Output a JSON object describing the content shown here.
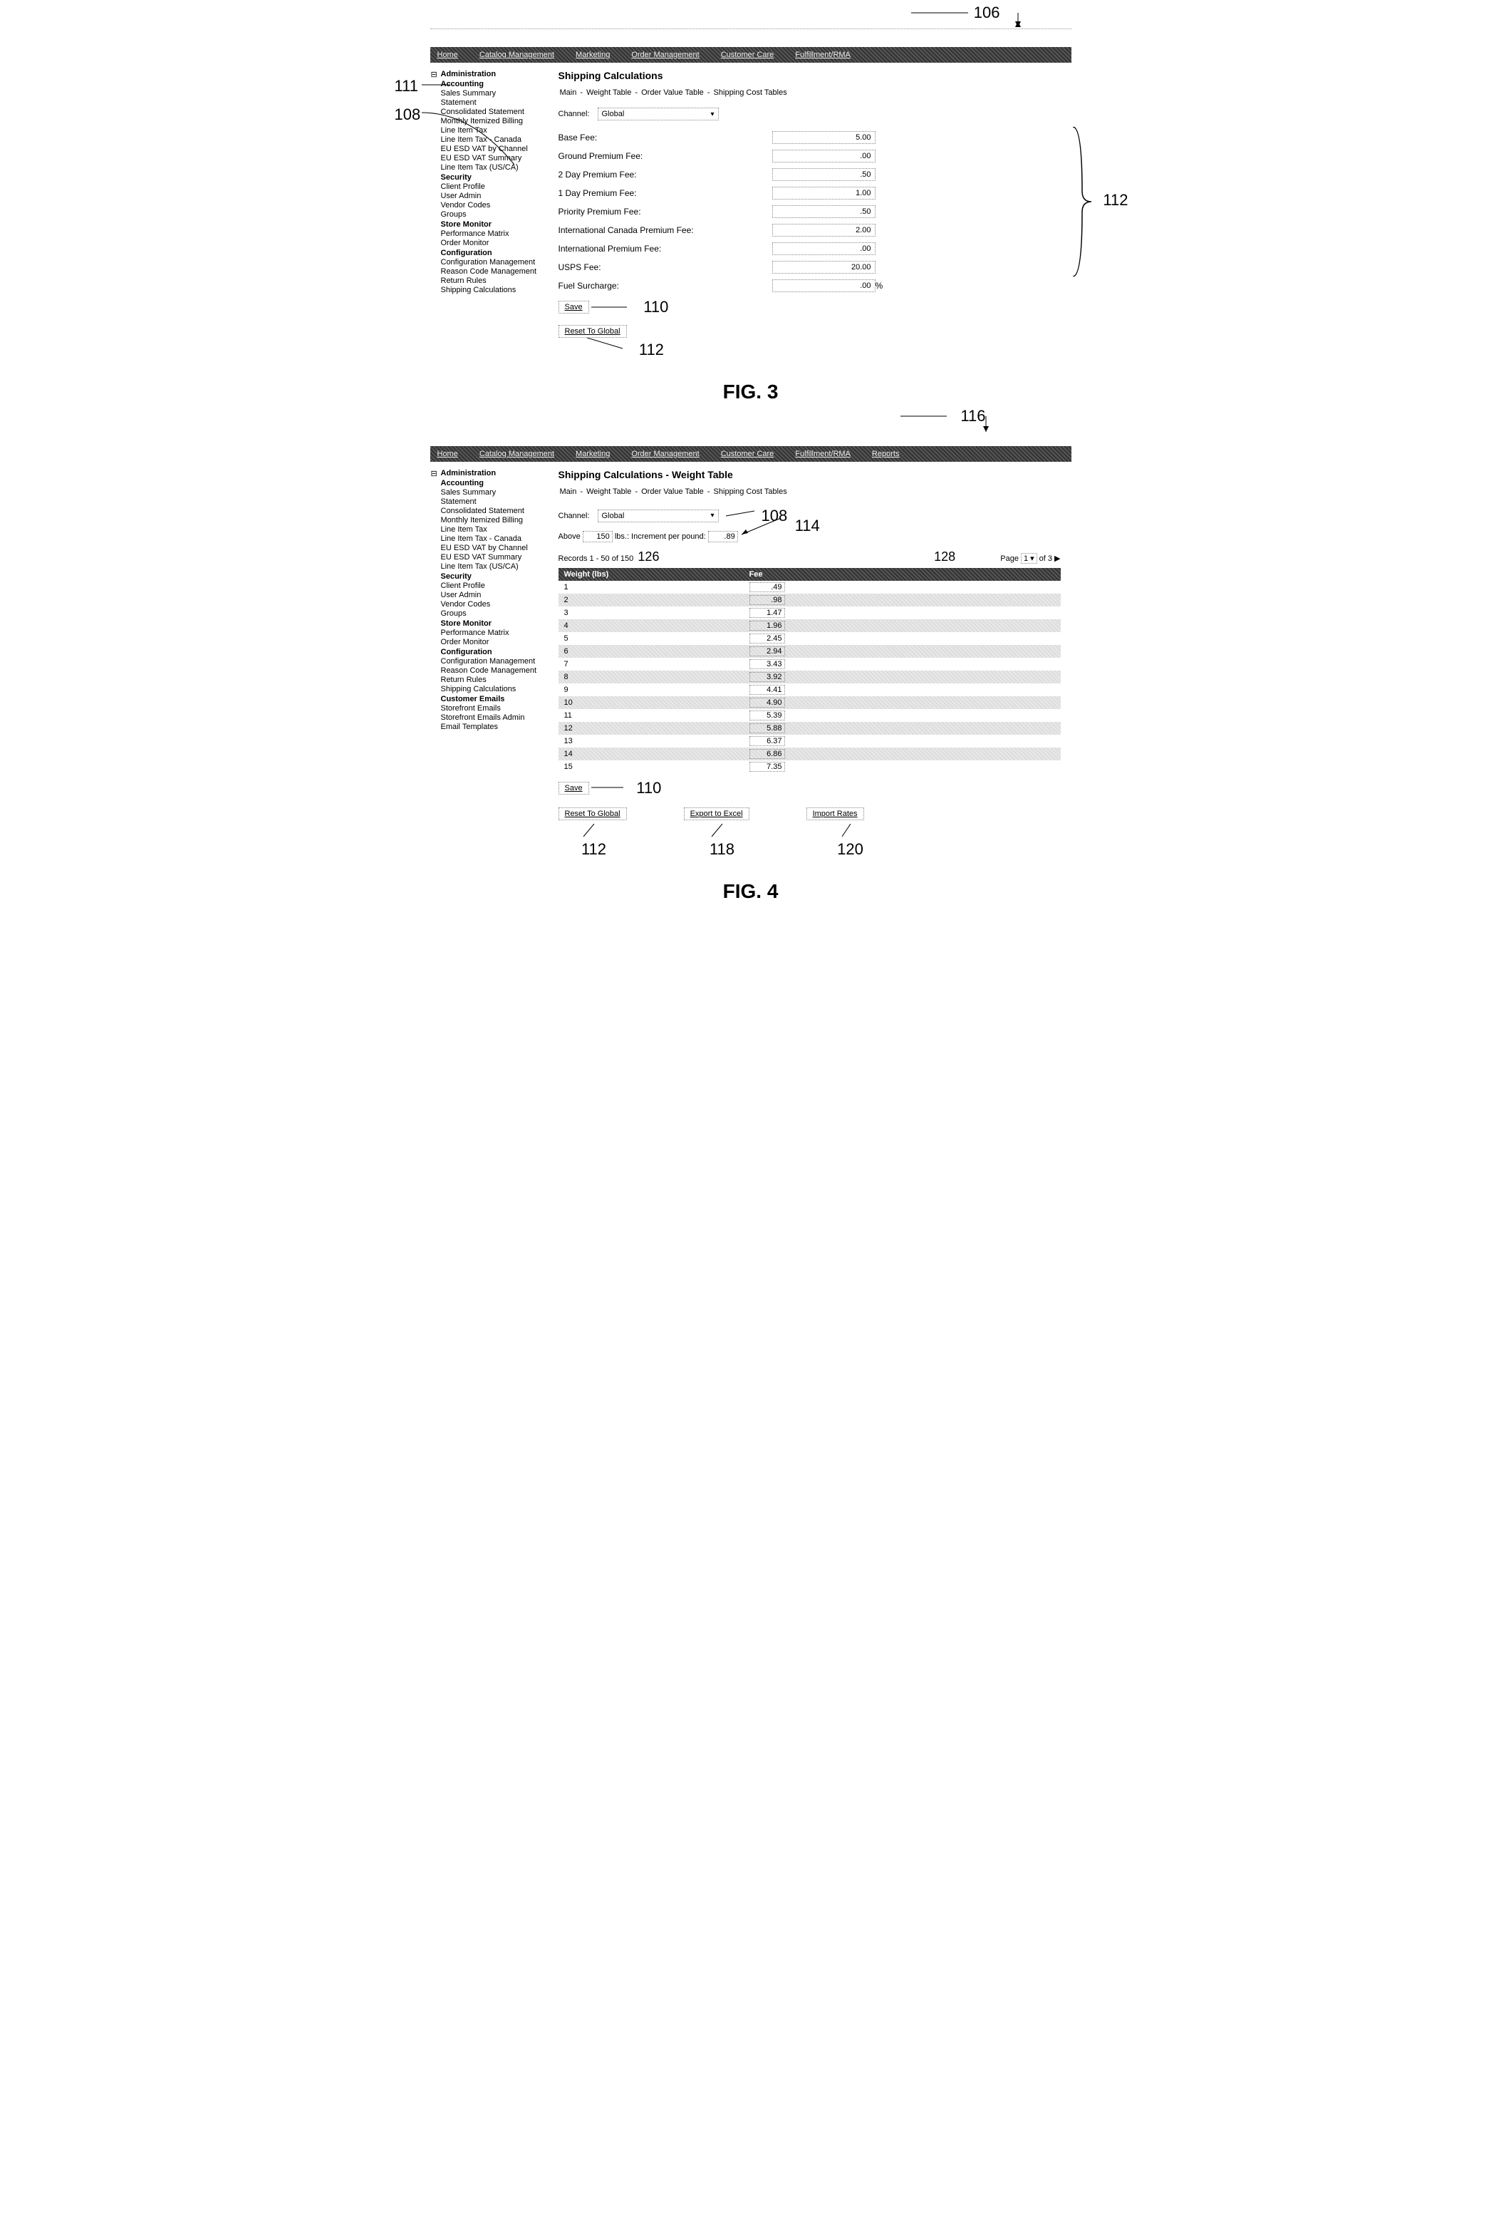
{
  "fig3": {
    "topAnno": "106",
    "leftAnno1": "111",
    "leftAnno2": "108",
    "rightAnno": "112",
    "saveAnno": "110",
    "resetAnno": "112",
    "header": [
      "Home",
      "Catalog Management",
      "Marketing",
      "Order Management",
      "Customer Care",
      "Fulfillment/RMA"
    ],
    "sidebar": {
      "root": "Administration",
      "sections": [
        {
          "title": "Accounting",
          "items": [
            "Sales Summary",
            "Statement",
            "Consolidated Statement",
            "Monthly Itemized Billing",
            "Line Item Tax",
            "Line Item Tax - Canada",
            "EU ESD VAT by Channel",
            "EU ESD VAT Summary",
            "Line Item Tax (US/CA)"
          ]
        },
        {
          "title": "Security",
          "items": [
            "Client Profile",
            "User Admin",
            "Vendor Codes",
            "Groups"
          ]
        },
        {
          "title": "Store Monitor",
          "items": [
            "Performance Matrix",
            "Order Monitor"
          ]
        },
        {
          "title": "Configuration",
          "items": [
            "Configuration Management",
            "Reason Code Management",
            "Return Rules",
            "Shipping Calculations"
          ]
        }
      ]
    },
    "title": "Shipping Calculations",
    "subnav": [
      "Main",
      "Weight Table",
      "Order Value Table",
      "Shipping Cost Tables"
    ],
    "channelLabel": "Channel:",
    "channelValue": "Global",
    "fees": [
      {
        "label": "Base Fee:",
        "value": "5.00"
      },
      {
        "label": "Ground Premium Fee:",
        "value": ".00"
      },
      {
        "label": "2 Day Premium Fee:",
        "value": ".50"
      },
      {
        "label": "1 Day Premium Fee:",
        "value": "1.00"
      },
      {
        "label": "Priority Premium Fee:",
        "value": ".50"
      },
      {
        "label": "International Canada Premium Fee:",
        "value": "2.00"
      },
      {
        "label": "International Premium Fee:",
        "value": ".00"
      },
      {
        "label": "USPS Fee:",
        "value": "20.00"
      },
      {
        "label": "Fuel Surcharge:",
        "value": ".00",
        "suffix": "%"
      }
    ],
    "saveBtn": "Save",
    "resetBtn": "Reset To Global",
    "figLabel": "FIG. 3"
  },
  "fig4": {
    "topAnno": "116",
    "channelAnno": "108",
    "incrementAnno": "114",
    "recordsAnno": "126",
    "pageAnno": "128",
    "saveAnno": "110",
    "resetAnno": "112",
    "exportAnno": "118",
    "importAnno": "120",
    "header": [
      "Home",
      "Catalog Management",
      "Marketing",
      "Order Management",
      "Customer Care",
      "Fulfillment/RMA",
      "Reports"
    ],
    "sidebar": {
      "root": "Administration",
      "sections": [
        {
          "title": "Accounting",
          "items": [
            "Sales Summary",
            "Statement",
            "Consolidated Statement",
            "Monthly Itemized Billing",
            "Line Item Tax",
            "Line Item Tax - Canada",
            "EU ESD VAT by Channel",
            "EU ESD VAT Summary",
            "Line Item Tax (US/CA)"
          ]
        },
        {
          "title": "Security",
          "items": [
            "Client Profile",
            "User Admin",
            "Vendor Codes",
            "Groups"
          ]
        },
        {
          "title": "Store Monitor",
          "items": [
            "Performance Matrix",
            "Order Monitor"
          ]
        },
        {
          "title": "Configuration",
          "items": [
            "Configuration Management",
            "Reason Code Management",
            "Return Rules",
            "Shipping Calculations"
          ]
        },
        {
          "title": "Customer Emails",
          "items": [
            "Storefront Emails",
            "Storefront Emails Admin",
            "Email Templates"
          ]
        }
      ]
    },
    "title": "Shipping Calculations - Weight Table",
    "subnav": [
      "Main",
      "Weight Table",
      "Order Value Table",
      "Shipping Cost Tables"
    ],
    "channelLabel": "Channel:",
    "channelValue": "Global",
    "aboveLabel": "Above",
    "aboveValue": "150",
    "lbsLabel": "lbs.: Increment per pound:",
    "incrementValue": ".89",
    "recordsText": "Records 1 - 50 of 150",
    "pageLabel": "Page",
    "pageValue": "1",
    "pageOf": "of 3",
    "tableHeaders": {
      "weight": "Weight (lbs)",
      "fee": "Fee"
    },
    "rows": [
      {
        "w": "1",
        "f": ".49"
      },
      {
        "w": "2",
        "f": ".98"
      },
      {
        "w": "3",
        "f": "1.47"
      },
      {
        "w": "4",
        "f": "1.96"
      },
      {
        "w": "5",
        "f": "2.45"
      },
      {
        "w": "6",
        "f": "2.94"
      },
      {
        "w": "7",
        "f": "3.43"
      },
      {
        "w": "8",
        "f": "3.92"
      },
      {
        "w": "9",
        "f": "4.41"
      },
      {
        "w": "10",
        "f": "4.90"
      },
      {
        "w": "11",
        "f": "5.39"
      },
      {
        "w": "12",
        "f": "5.88"
      },
      {
        "w": "13",
        "f": "6.37"
      },
      {
        "w": "14",
        "f": "6.86"
      },
      {
        "w": "15",
        "f": "7.35"
      }
    ],
    "saveBtn": "Save",
    "resetBtn": "Reset To Global",
    "exportBtn": "Export to Excel",
    "importBtn": "Import Rates",
    "figLabel": "FIG. 4"
  }
}
